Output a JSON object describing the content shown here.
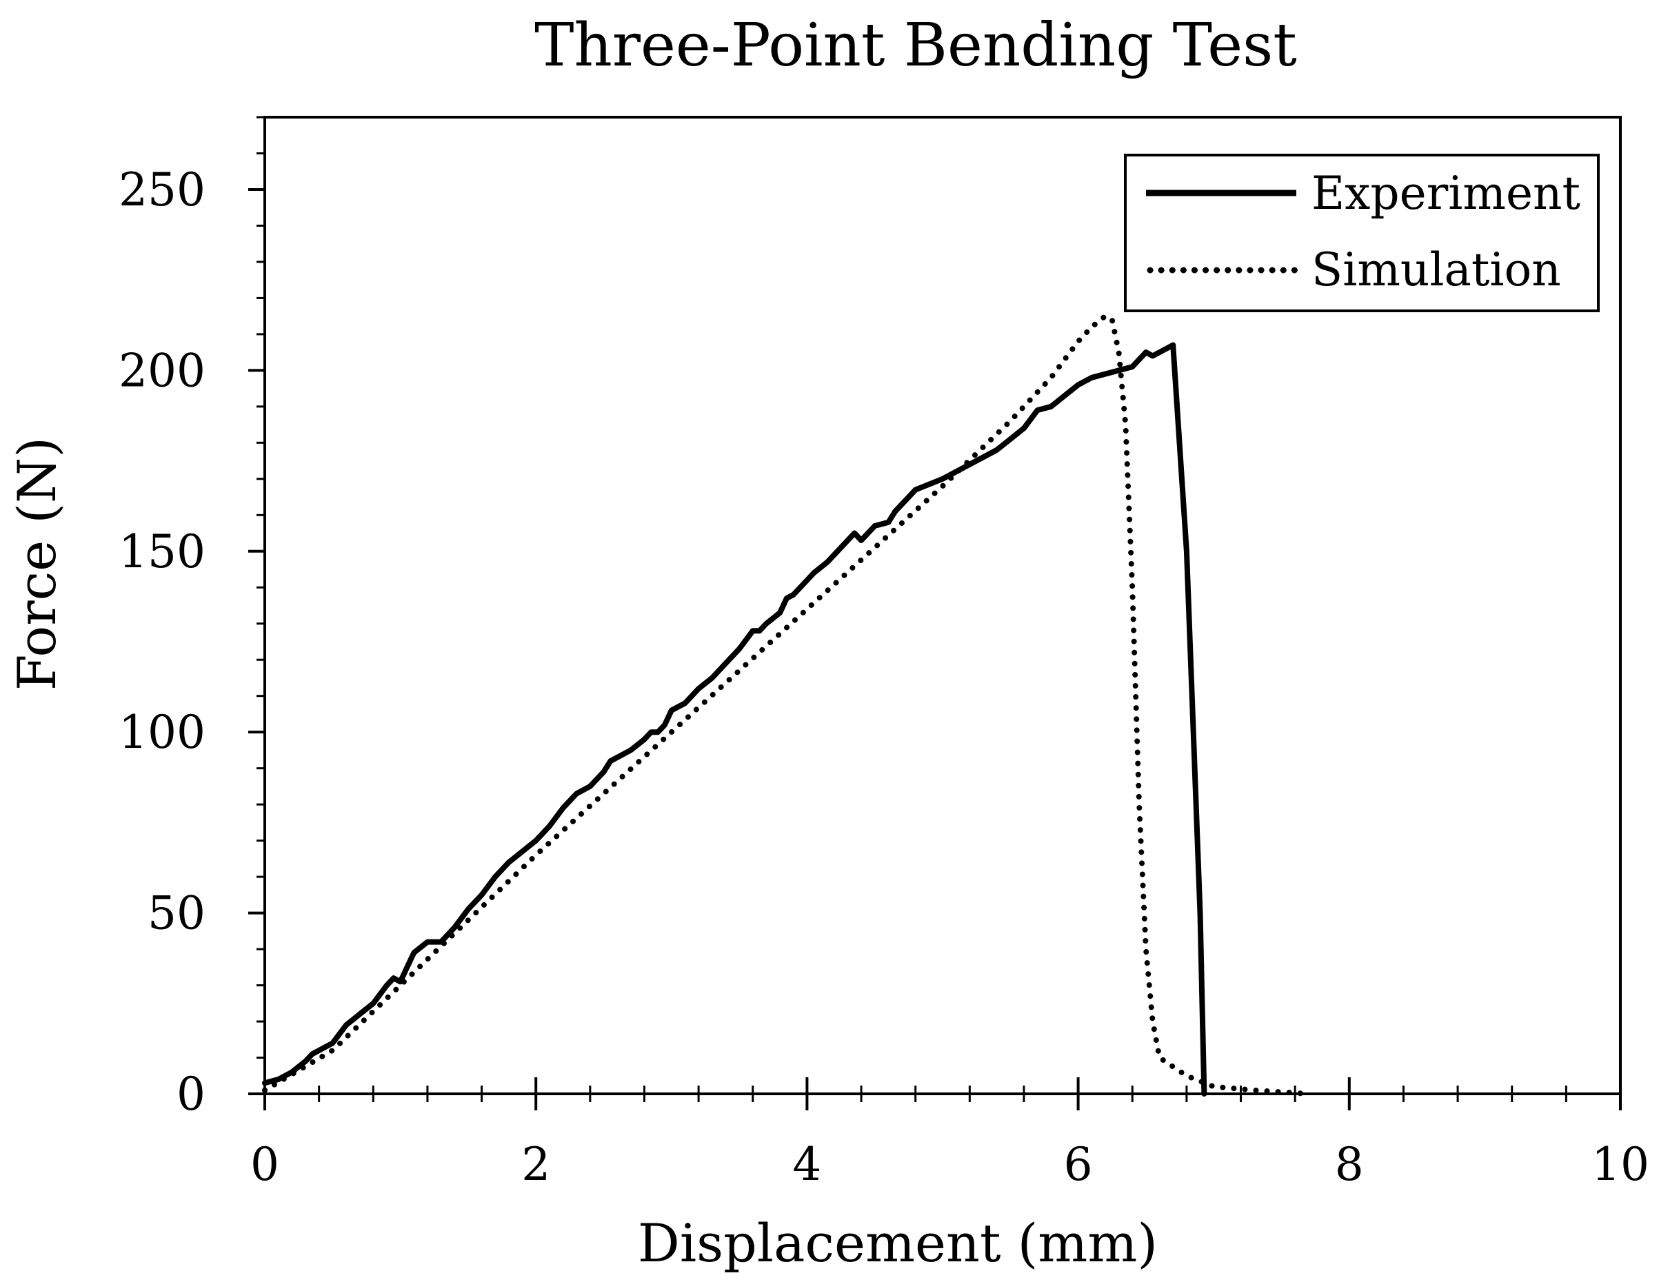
{
  "chart_data": {
    "type": "line",
    "title": "Three-Point Bending Test",
    "xlabel": "Displacement (mm)",
    "ylabel": "Force (N)",
    "xlim": [
      0,
      10
    ],
    "ylim": [
      0,
      270
    ],
    "x_ticks": [
      "0",
      "2",
      "4",
      "6",
      "8",
      "10"
    ],
    "y_ticks": [
      "0",
      "50",
      "100",
      "150",
      "200",
      "250"
    ],
    "grid": false,
    "legend_position": "top-right",
    "series": [
      {
        "name": "Experiment",
        "style": "solid",
        "color": "#000000",
        "points": [
          [
            0.0,
            3
          ],
          [
            0.1,
            4
          ],
          [
            0.2,
            6
          ],
          [
            0.3,
            9
          ],
          [
            0.35,
            11
          ],
          [
            0.4,
            12
          ],
          [
            0.5,
            14
          ],
          [
            0.6,
            19
          ],
          [
            0.7,
            22
          ],
          [
            0.8,
            25
          ],
          [
            0.9,
            30
          ],
          [
            0.95,
            32
          ],
          [
            1.0,
            31
          ],
          [
            1.05,
            35
          ],
          [
            1.1,
            39
          ],
          [
            1.2,
            42
          ],
          [
            1.3,
            42
          ],
          [
            1.4,
            46
          ],
          [
            1.5,
            51
          ],
          [
            1.6,
            55
          ],
          [
            1.7,
            60
          ],
          [
            1.8,
            64
          ],
          [
            1.9,
            67
          ],
          [
            2.0,
            70
          ],
          [
            2.1,
            74
          ],
          [
            2.2,
            79
          ],
          [
            2.3,
            83
          ],
          [
            2.4,
            85
          ],
          [
            2.5,
            89
          ],
          [
            2.55,
            92
          ],
          [
            2.6,
            93
          ],
          [
            2.7,
            95
          ],
          [
            2.8,
            98
          ],
          [
            2.85,
            100
          ],
          [
            2.9,
            100
          ],
          [
            2.95,
            102
          ],
          [
            3.0,
            106
          ],
          [
            3.1,
            108
          ],
          [
            3.2,
            112
          ],
          [
            3.3,
            115
          ],
          [
            3.4,
            119
          ],
          [
            3.5,
            123
          ],
          [
            3.6,
            128
          ],
          [
            3.65,
            128
          ],
          [
            3.7,
            130
          ],
          [
            3.8,
            133
          ],
          [
            3.85,
            137
          ],
          [
            3.9,
            138
          ],
          [
            4.0,
            142
          ],
          [
            4.05,
            144
          ],
          [
            4.15,
            147
          ],
          [
            4.2,
            149
          ],
          [
            4.3,
            153
          ],
          [
            4.35,
            155
          ],
          [
            4.4,
            153
          ],
          [
            4.5,
            157
          ],
          [
            4.6,
            158
          ],
          [
            4.65,
            161
          ],
          [
            4.8,
            167
          ],
          [
            5.0,
            170
          ],
          [
            5.2,
            174
          ],
          [
            5.4,
            178
          ],
          [
            5.5,
            181
          ],
          [
            5.6,
            184
          ],
          [
            5.7,
            189
          ],
          [
            5.8,
            190
          ],
          [
            5.9,
            193
          ],
          [
            6.0,
            196
          ],
          [
            6.1,
            198
          ],
          [
            6.2,
            199
          ],
          [
            6.3,
            200
          ],
          [
            6.4,
            201
          ],
          [
            6.5,
            205
          ],
          [
            6.55,
            204
          ],
          [
            6.6,
            205
          ],
          [
            6.7,
            207
          ],
          [
            6.8,
            150
          ],
          [
            6.9,
            50
          ],
          [
            6.93,
            0
          ]
        ]
      },
      {
        "name": "Simulation",
        "style": "dotted",
        "color": "#000000",
        "points": [
          [
            0.0,
            1
          ],
          [
            0.5,
            12
          ],
          [
            1.0,
            30
          ],
          [
            1.5,
            48
          ],
          [
            2.0,
            66
          ],
          [
            2.5,
            83
          ],
          [
            3.0,
            100
          ],
          [
            3.5,
            117
          ],
          [
            4.0,
            134
          ],
          [
            4.5,
            151
          ],
          [
            5.0,
            168
          ],
          [
            5.5,
            186
          ],
          [
            5.8,
            198
          ],
          [
            6.0,
            208
          ],
          [
            6.1,
            212
          ],
          [
            6.2,
            215
          ],
          [
            6.25,
            214
          ],
          [
            6.3,
            205
          ],
          [
            6.35,
            185
          ],
          [
            6.4,
            140
          ],
          [
            6.45,
            80
          ],
          [
            6.5,
            40
          ],
          [
            6.55,
            20
          ],
          [
            6.6,
            10
          ],
          [
            6.8,
            5
          ],
          [
            7.0,
            2
          ],
          [
            7.3,
            1
          ],
          [
            7.7,
            0
          ]
        ]
      }
    ]
  }
}
